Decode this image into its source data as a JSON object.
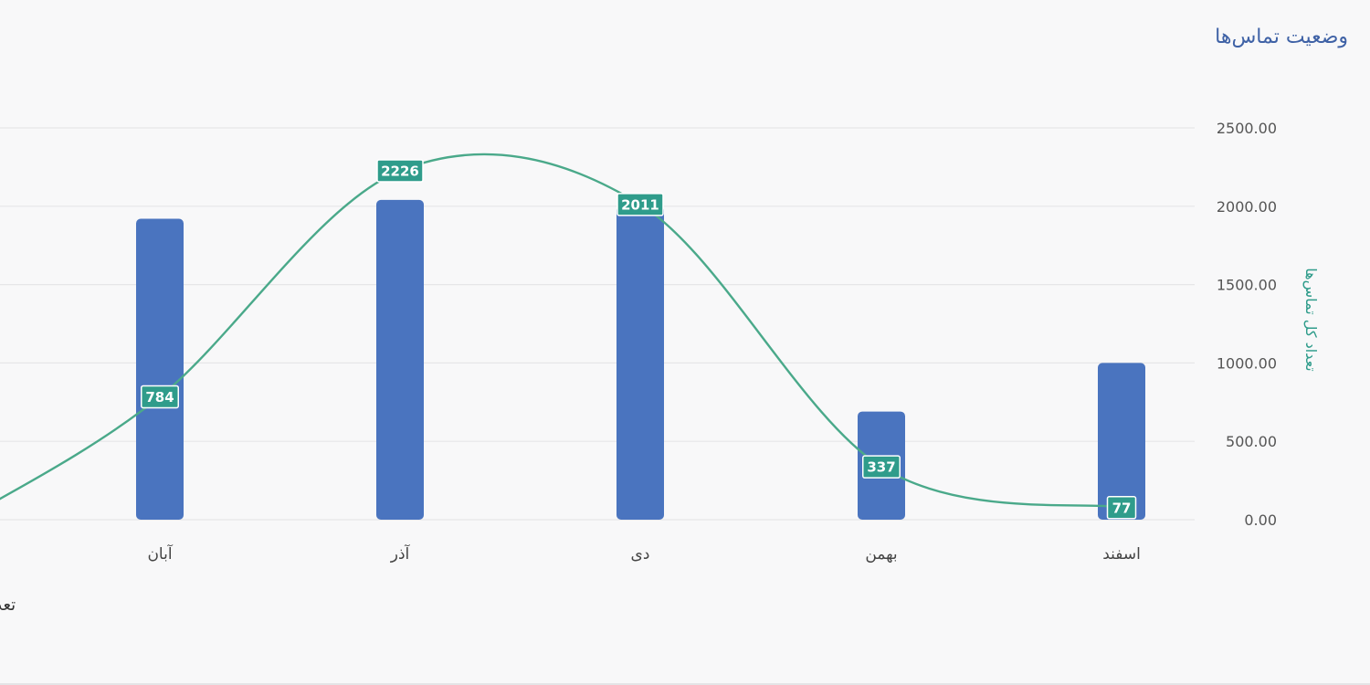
{
  "title": "وضعیت تماس‌ها",
  "legend_fragment": "تعد",
  "colors": {
    "bar": "#4a74bf",
    "line": "#4aa98a",
    "label_bg": "#2f9c8b",
    "label_text": "#ffffff",
    "grid": "#e6e6e8",
    "axis_text": "#555555",
    "y_title": "#2f9c8b",
    "title": "#3f62a6"
  },
  "chart_data": {
    "type": "bar",
    "categories": [
      "آبان",
      "آذر",
      "دی",
      "بهمن",
      "اسفند"
    ],
    "ylabel": "تعداد کل تماس‌ها",
    "ylim": [
      0,
      2500
    ],
    "y_ticks": [
      "0.00",
      "500.00",
      "1000.00",
      "1500.00",
      "2000.00",
      "2500.00"
    ],
    "y_tick_values": [
      0,
      500,
      1000,
      1500,
      2000,
      2500
    ],
    "grid": true,
    "series": [
      {
        "chart": "bar",
        "values": [
          1920,
          2040,
          2000,
          690,
          1000
        ]
      },
      {
        "chart": "line",
        "values": [
          784,
          2226,
          2011,
          337,
          77
        ],
        "data_labels": [
          "784",
          "2226",
          "2011",
          "337",
          "77"
        ]
      }
    ]
  }
}
